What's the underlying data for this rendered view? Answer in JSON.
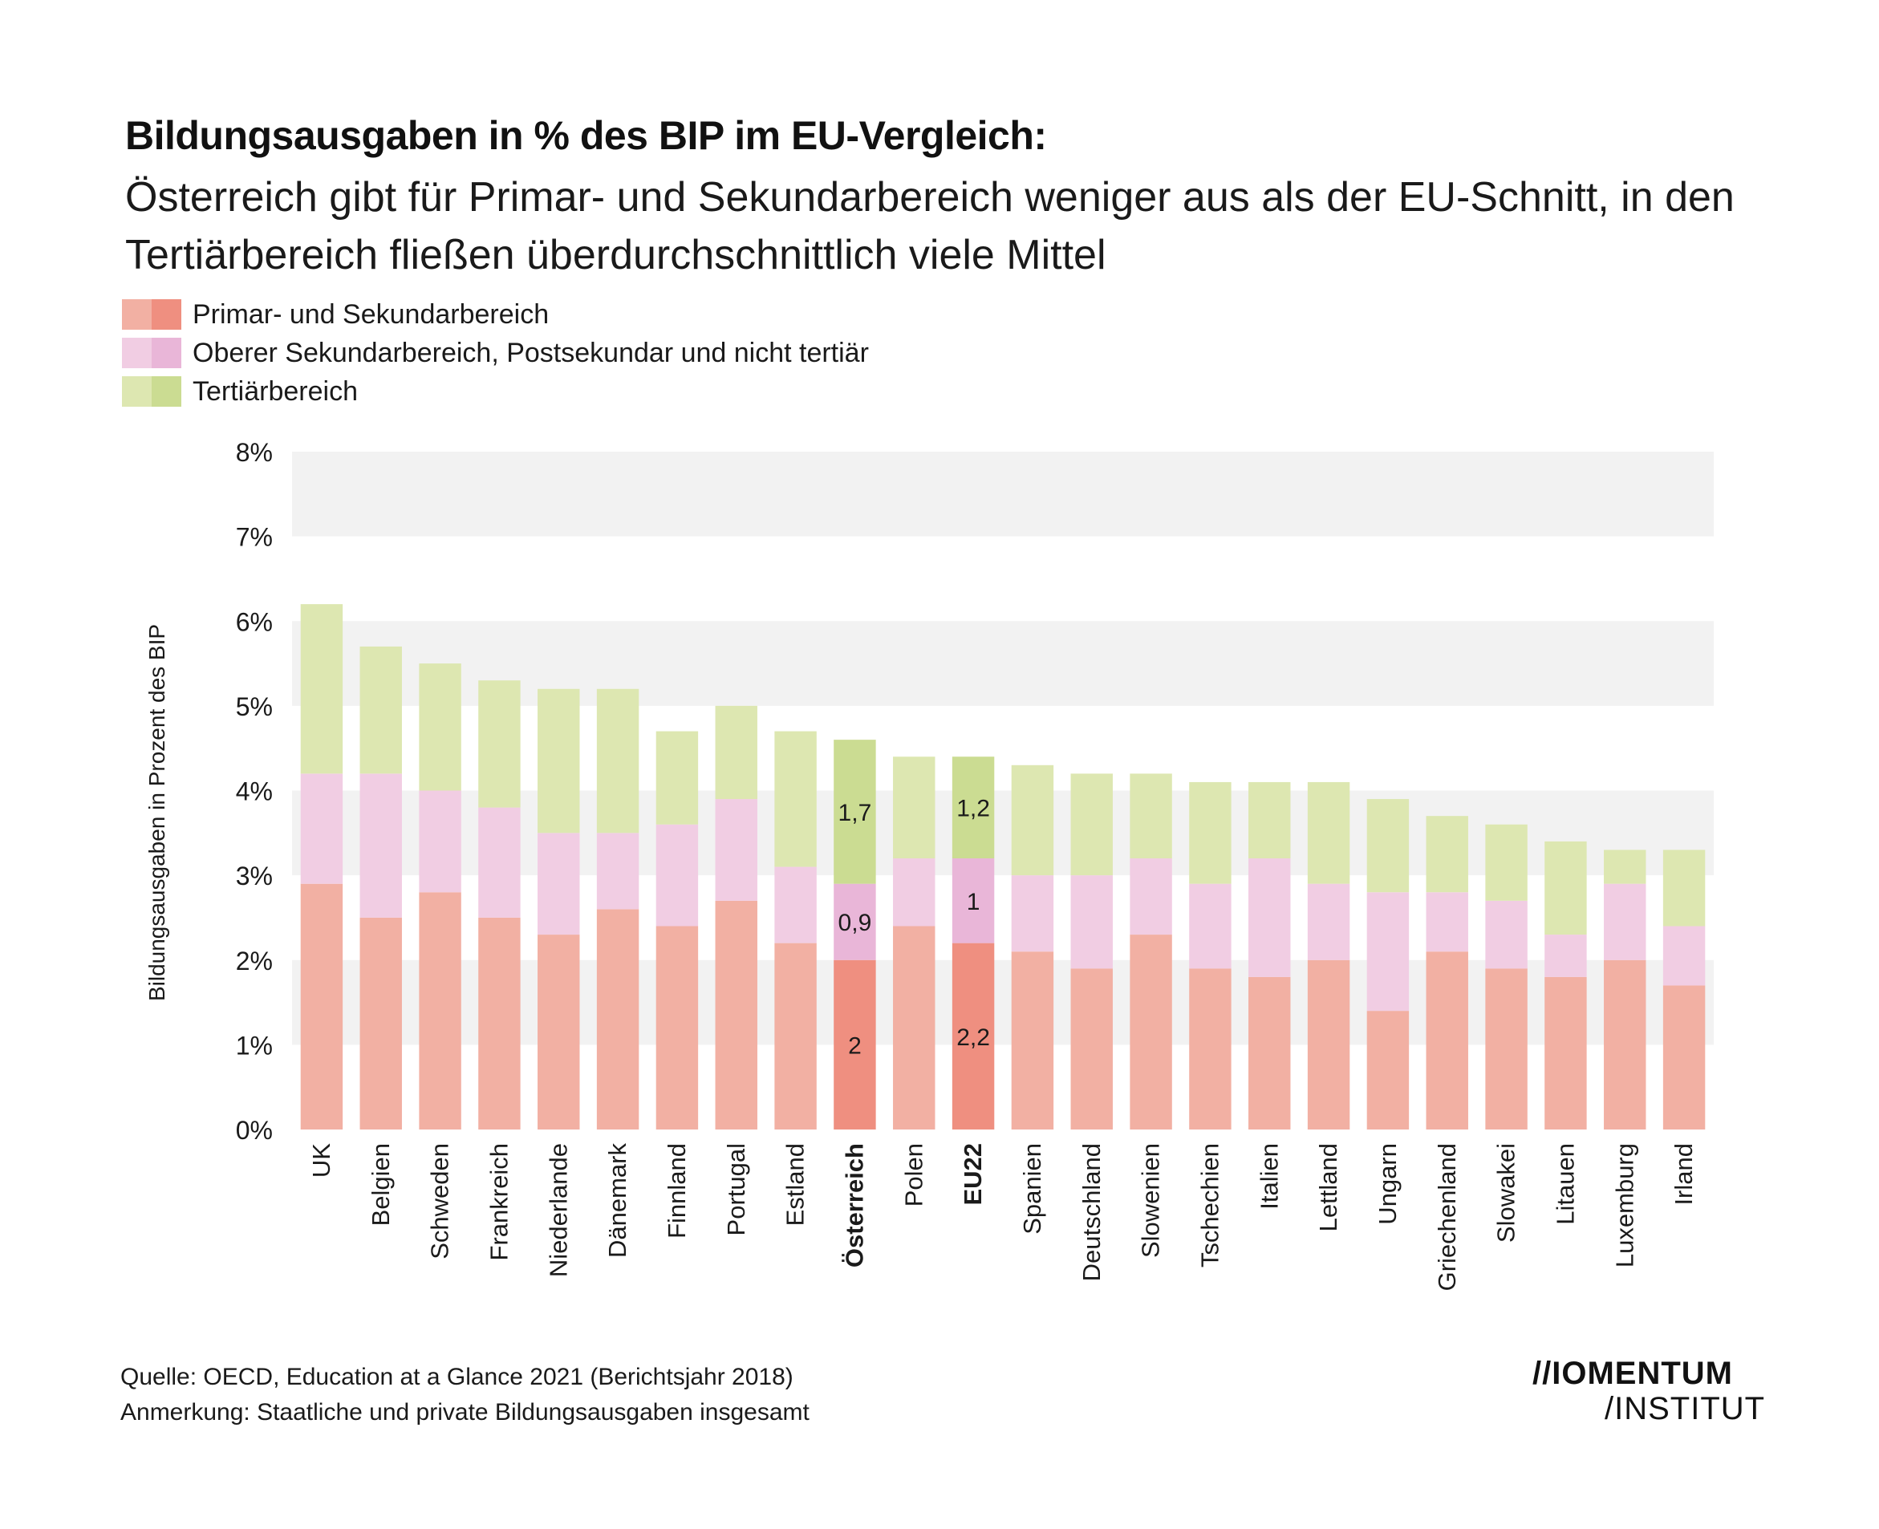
{
  "header": {
    "title": "Bildungsausgaben in % des BIP im EU-Vergleich:",
    "subtitle": "Österreich gibt für Primar- und Sekundarbereich weniger aus als der EU-Schnitt, in den Tertiärbereich fließen überdurchschnittlich viele Mittel"
  },
  "footer": {
    "source": "Quelle: OECD, Education at a Glance 2021 (Berichtsjahr 2018)",
    "note": "Anmerkung: Staatliche und private Bildungsausgaben insgesamt"
  },
  "logo": {
    "line1": "//IOMENTUM",
    "line2": "/INSTITUT"
  },
  "colors": {
    "primary": "#f2b0a3",
    "primary_highlight": "#ef8f80",
    "upper_secondary": "#f1cde3",
    "upper_secondary_highlight": "#e9b6d8",
    "tertiary": "#dde7b1",
    "tertiary_highlight": "#cbdc92",
    "band": "#f2f2f2"
  },
  "chart_data": {
    "type": "bar",
    "stacked": true,
    "ylabel": "Bildungsausgaben in Prozent des BIP",
    "ylim": [
      0,
      8
    ],
    "yticks": [
      "0%",
      "1%",
      "2%",
      "3%",
      "4%",
      "5%",
      "6%",
      "7%",
      "8%"
    ],
    "grid": "alternating horizontal bands",
    "legend_position": "top-left",
    "highlighted_categories": [
      "Österreich",
      "EU22"
    ],
    "categories": [
      "UK",
      "Belgien",
      "Schweden",
      "Frankreich",
      "Niederlande",
      "Dänemark",
      "Finnland",
      "Portugal",
      "Estland",
      "Österreich",
      "Polen",
      "EU22",
      "Spanien",
      "Deutschland",
      "Slowenien",
      "Tschechien",
      "Italien",
      "Lettland",
      "Ungarn",
      "Griechenland",
      "Slowakei",
      "Litauen",
      "Luxemburg",
      "Irland"
    ],
    "series": [
      {
        "name": "Primar- und Sekundarbereich",
        "values": [
          2.9,
          2.5,
          2.8,
          2.5,
          2.3,
          2.6,
          2.4,
          2.7,
          2.2,
          2.0,
          2.4,
          2.2,
          2.1,
          1.9,
          2.3,
          1.9,
          1.8,
          2.0,
          1.4,
          2.1,
          1.9,
          1.8,
          2.0,
          1.7
        ]
      },
      {
        "name": "Oberer Sekundarbereich, Postsekundar und nicht tertiär",
        "values": [
          1.3,
          1.7,
          1.2,
          1.3,
          1.2,
          0.9,
          1.2,
          1.2,
          0.9,
          0.9,
          0.8,
          1.0,
          0.9,
          1.1,
          0.9,
          1.0,
          1.4,
          0.9,
          1.4,
          0.7,
          0.8,
          0.5,
          0.9,
          0.7
        ]
      },
      {
        "name": "Tertiärbereich",
        "values": [
          2.0,
          1.5,
          1.5,
          1.5,
          1.7,
          1.7,
          1.1,
          1.1,
          1.6,
          1.7,
          1.2,
          1.2,
          1.3,
          1.2,
          1.0,
          1.2,
          0.9,
          1.2,
          1.1,
          0.9,
          0.9,
          1.1,
          0.4,
          0.9
        ]
      }
    ],
    "data_labels": [
      {
        "category": "Österreich",
        "values": [
          "2",
          "0,9",
          "1,7"
        ]
      },
      {
        "category": "EU22",
        "values": [
          "2,2",
          "1",
          "1,2"
        ]
      }
    ]
  }
}
